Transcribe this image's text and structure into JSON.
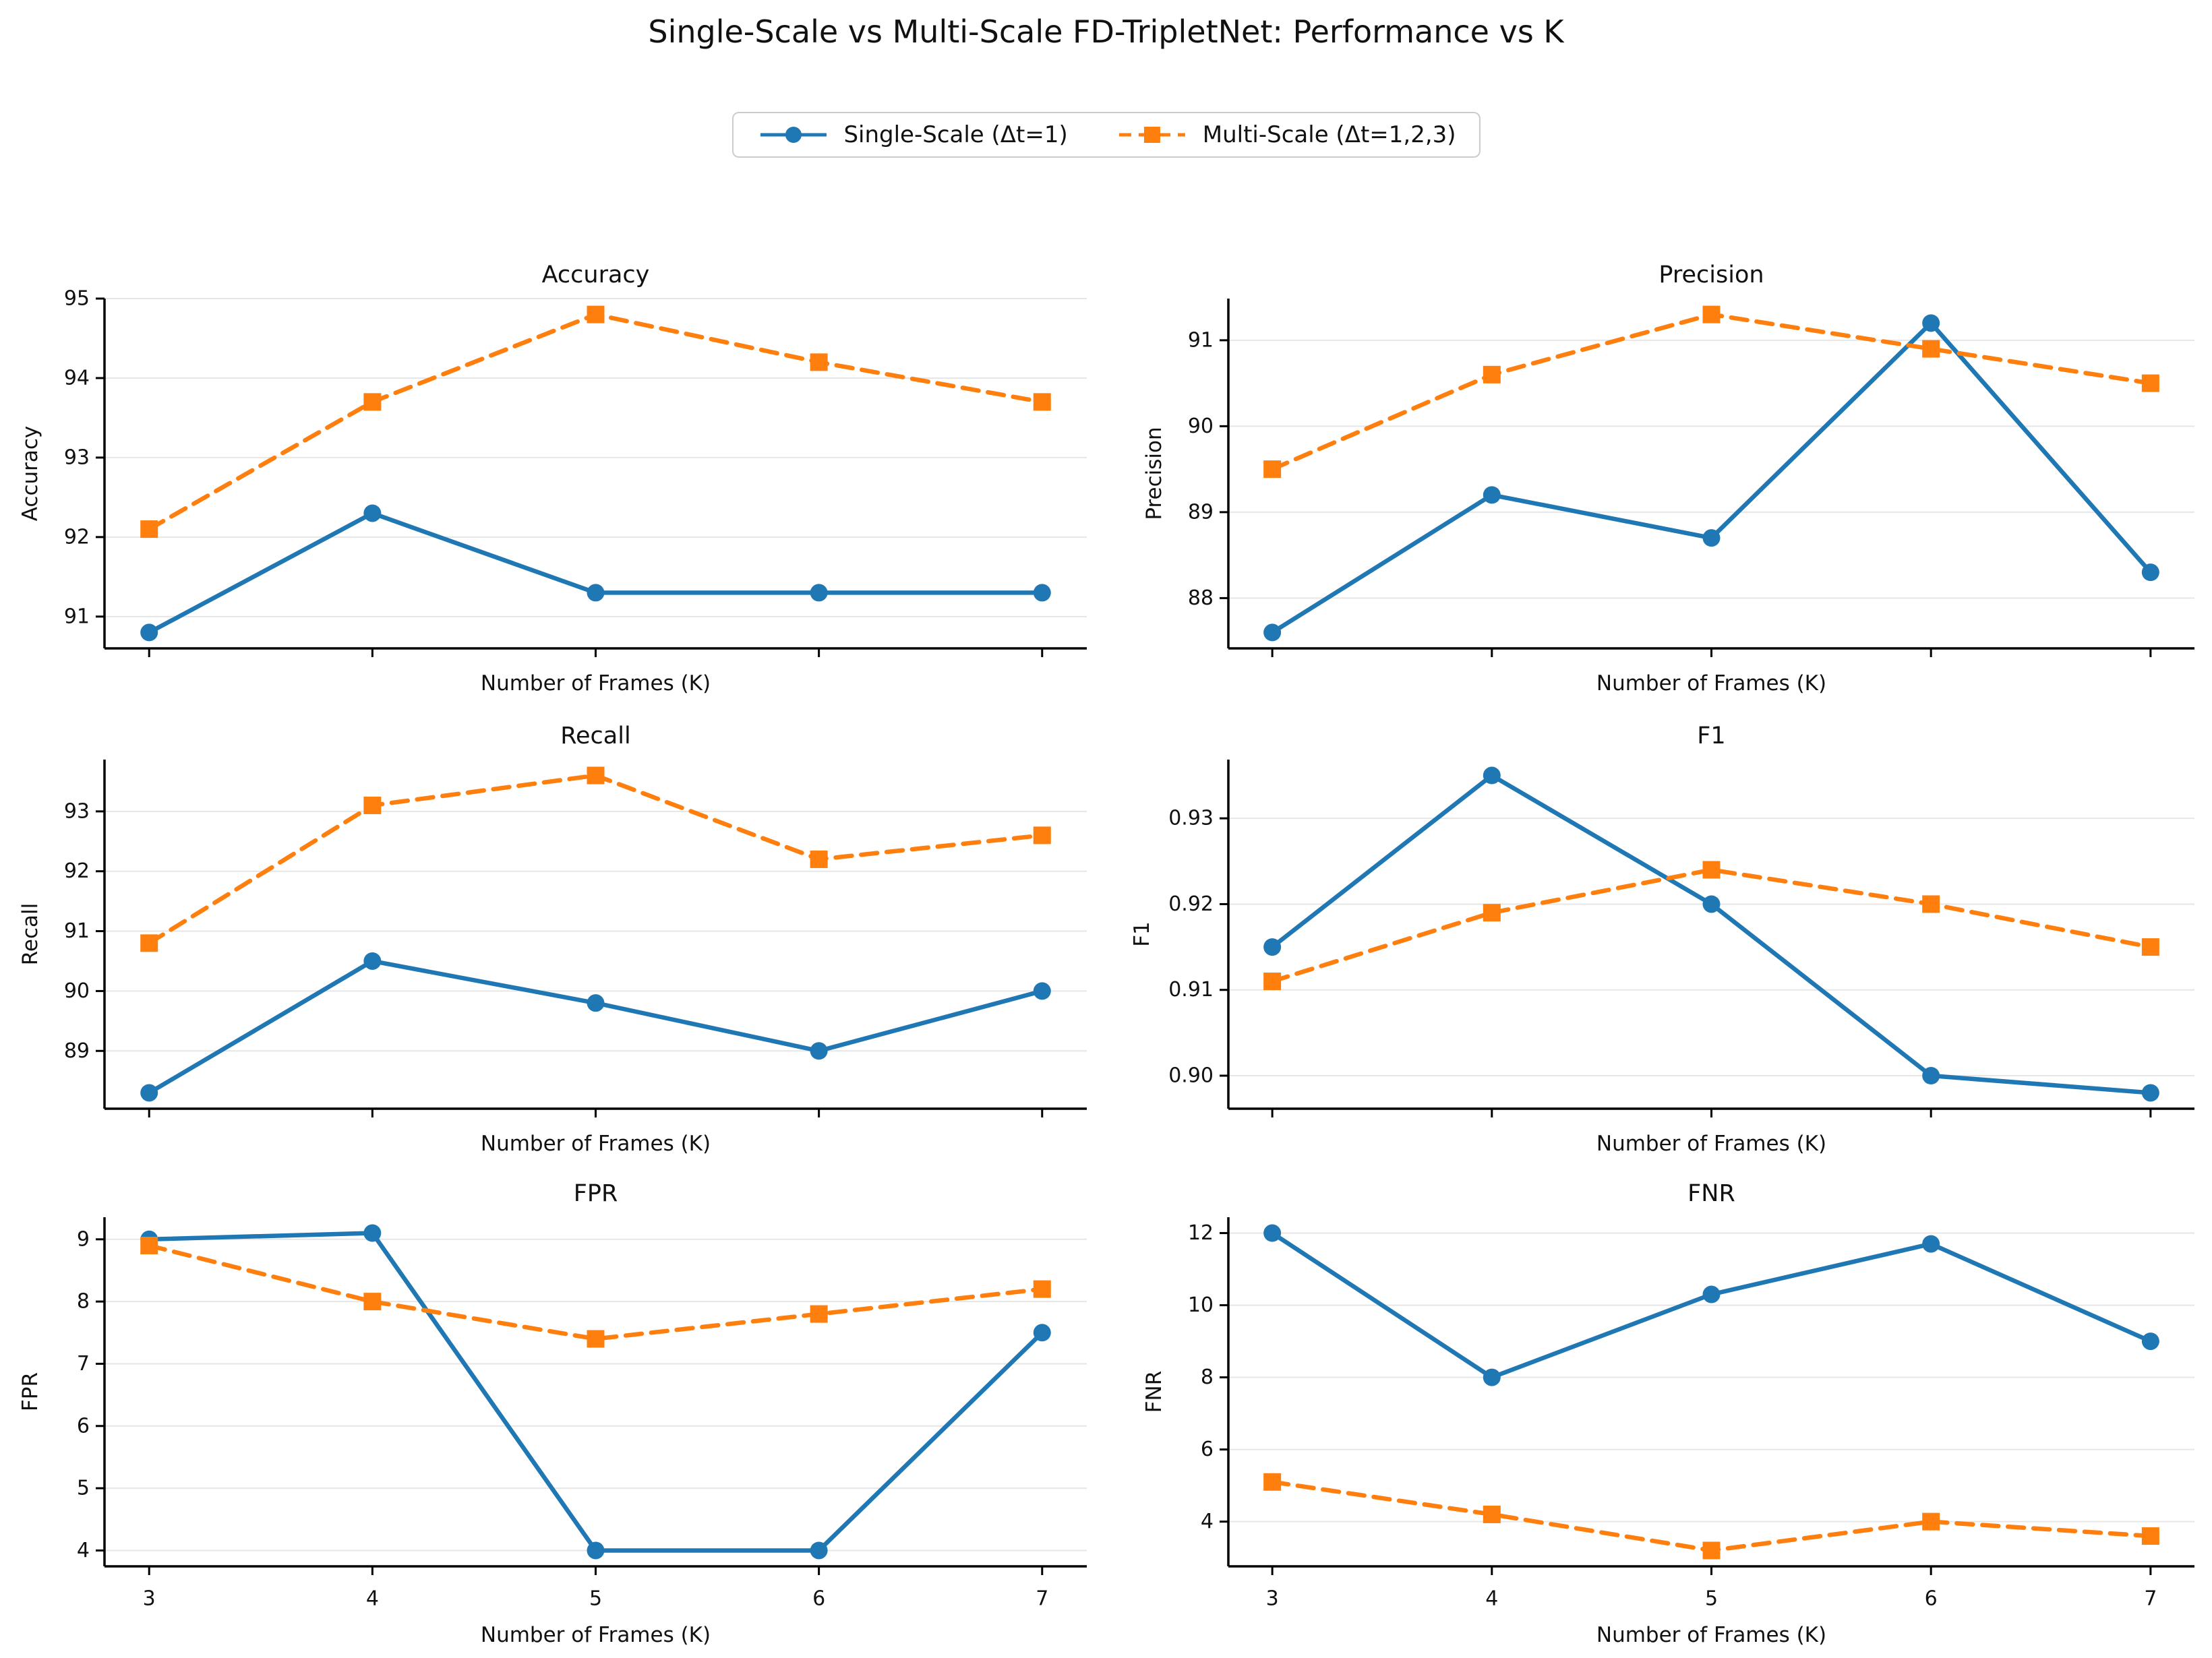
{
  "title": "Single-Scale vs Multi-Scale FD-TripletNet: Performance vs K",
  "colors": {
    "single": "#1f77b4",
    "multi": "#ff7f0e",
    "grid": "#e6e6e6",
    "spine": "#000000",
    "text": "#111111"
  },
  "legend": {
    "items": [
      {
        "label": "Single-Scale (Δt=1)",
        "color": "#1f77b4",
        "marker": "circle",
        "line": "solid"
      },
      {
        "label": "Multi-Scale (Δt=1,2,3)",
        "color": "#ff7f0e",
        "marker": "square",
        "line": "dashed"
      }
    ]
  },
  "chart_data": [
    {
      "type": "line",
      "title": "Accuracy",
      "ylabel": "Accuracy",
      "xlabel": "Number of Frames (K)",
      "x": [
        3,
        4,
        5,
        6,
        7
      ],
      "yticks": [
        91,
        92,
        93,
        94,
        95
      ],
      "ytick_decimals": 0,
      "ylim": [
        90.6,
        95.0
      ],
      "xlim": [
        2.8,
        7.2
      ],
      "grid": true,
      "x_tick_labels": false,
      "series": [
        {
          "name": "Single-Scale (Δt=1)",
          "color": "#1f77b4",
          "line": "solid",
          "marker": "circle",
          "values": [
            90.8,
            92.3,
            91.3,
            91.3,
            91.3
          ]
        },
        {
          "name": "Multi-Scale (Δt=1,2,3)",
          "color": "#ff7f0e",
          "line": "dashed",
          "marker": "square",
          "values": [
            92.1,
            93.7,
            94.8,
            94.2,
            93.7
          ]
        }
      ]
    },
    {
      "type": "line",
      "title": "Precision",
      "ylabel": "Precision",
      "xlabel": "Number of Frames (K)",
      "x": [
        3,
        4,
        5,
        6,
        7
      ],
      "yticks": [
        88,
        89,
        90,
        91
      ],
      "ytick_decimals": 0,
      "ylim": [
        87.415,
        91.485
      ],
      "xlim": [
        2.8,
        7.2
      ],
      "grid": true,
      "x_tick_labels": false,
      "series": [
        {
          "name": "Single-Scale (Δt=1)",
          "color": "#1f77b4",
          "line": "solid",
          "marker": "circle",
          "values": [
            87.6,
            89.2,
            88.7,
            91.2,
            88.3
          ]
        },
        {
          "name": "Multi-Scale (Δt=1,2,3)",
          "color": "#ff7f0e",
          "line": "dashed",
          "marker": "square",
          "values": [
            89.5,
            90.6,
            91.3,
            90.9,
            90.5
          ]
        }
      ]
    },
    {
      "type": "line",
      "title": "Recall",
      "ylabel": "Recall",
      "xlabel": "Number of Frames (K)",
      "x": [
        3,
        4,
        5,
        6,
        7
      ],
      "yticks": [
        89,
        90,
        91,
        92,
        93
      ],
      "ytick_decimals": 0,
      "ylim": [
        88.035,
        93.865
      ],
      "xlim": [
        2.8,
        7.2
      ],
      "grid": true,
      "x_tick_labels": false,
      "series": [
        {
          "name": "Single-Scale (Δt=1)",
          "color": "#1f77b4",
          "line": "solid",
          "marker": "circle",
          "values": [
            88.3,
            90.5,
            89.8,
            89.0,
            90.0
          ]
        },
        {
          "name": "Multi-Scale (Δt=1,2,3)",
          "color": "#ff7f0e",
          "line": "dashed",
          "marker": "square",
          "values": [
            90.8,
            93.1,
            93.6,
            92.2,
            92.6
          ]
        }
      ]
    },
    {
      "type": "line",
      "title": "F1",
      "ylabel": "F1",
      "xlabel": "Number of Frames (K)",
      "x": [
        3,
        4,
        5,
        6,
        7
      ],
      "yticks": [
        0.9,
        0.91,
        0.92,
        0.93
      ],
      "ytick_decimals": 2,
      "ylim": [
        0.89615,
        0.93685
      ],
      "xlim": [
        2.8,
        7.2
      ],
      "grid": true,
      "x_tick_labels": false,
      "series": [
        {
          "name": "Single-Scale (Δt=1)",
          "color": "#1f77b4",
          "line": "solid",
          "marker": "circle",
          "values": [
            0.915,
            0.935,
            0.92,
            0.9,
            0.898
          ]
        },
        {
          "name": "Multi-Scale (Δt=1,2,3)",
          "color": "#ff7f0e",
          "line": "dashed",
          "marker": "square",
          "values": [
            0.911,
            0.919,
            0.924,
            0.92,
            0.915
          ]
        }
      ]
    },
    {
      "type": "line",
      "title": "FPR",
      "ylabel": "FPR",
      "xlabel": "Number of Frames (K)",
      "x": [
        3,
        4,
        5,
        6,
        7
      ],
      "yticks": [
        4,
        5,
        6,
        7,
        8,
        9
      ],
      "ytick_decimals": 0,
      "ylim": [
        3.745,
        9.355
      ],
      "xlim": [
        2.8,
        7.2
      ],
      "grid": true,
      "x_tick_labels": true,
      "series": [
        {
          "name": "Single-Scale (Δt=1)",
          "color": "#1f77b4",
          "line": "solid",
          "marker": "circle",
          "values": [
            9.0,
            9.1,
            4.0,
            4.0,
            7.5
          ]
        },
        {
          "name": "Multi-Scale (Δt=1,2,3)",
          "color": "#ff7f0e",
          "line": "dashed",
          "marker": "square",
          "values": [
            8.9,
            8.0,
            7.4,
            7.8,
            8.2
          ]
        }
      ]
    },
    {
      "type": "line",
      "title": "FNR",
      "ylabel": "FNR",
      "xlabel": "Number of Frames (K)",
      "x": [
        3,
        4,
        5,
        6,
        7
      ],
      "yticks": [
        4,
        6,
        8,
        10,
        12
      ],
      "ytick_decimals": 0,
      "ylim": [
        2.76,
        12.44
      ],
      "xlim": [
        2.8,
        7.2
      ],
      "grid": true,
      "x_tick_labels": true,
      "series": [
        {
          "name": "Single-Scale (Δt=1)",
          "color": "#1f77b4",
          "line": "solid",
          "marker": "circle",
          "values": [
            12.0,
            8.0,
            10.3,
            11.7,
            9.0
          ]
        },
        {
          "name": "Multi-Scale (Δt=1,2,3)",
          "color": "#ff7f0e",
          "line": "dashed",
          "marker": "square",
          "values": [
            5.1,
            4.2,
            3.2,
            4.0,
            3.6
          ]
        }
      ]
    }
  ]
}
